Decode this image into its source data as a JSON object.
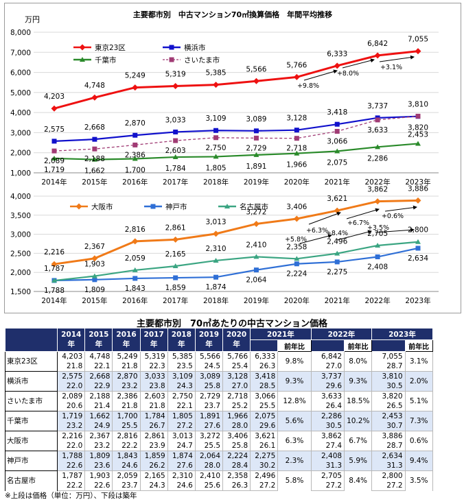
{
  "chart_data": [
    {
      "type": "line",
      "title": "主要都市別　中古マンション70㎡換算価格　年間平均推移",
      "ylabel": "万円",
      "ylim": [
        1000,
        8000
      ],
      "yticks": [
        "1,000",
        "2,000",
        "3,000",
        "4,000",
        "5,000",
        "6,000",
        "7,000",
        "8,000"
      ],
      "categories": [
        "2014年",
        "2015年",
        "2016年",
        "2017年",
        "2018年",
        "2019年",
        "2020年",
        "2021年",
        "2022年",
        "2023年"
      ],
      "legend": "top-left",
      "series": [
        {
          "name": "東京23区",
          "color": "#ee1111",
          "marker": "diamond",
          "dash": false,
          "values": [
            4203,
            4748,
            5249,
            5319,
            5385,
            5566,
            5766,
            6333,
            6842,
            7055
          ],
          "labels": [
            "4,203",
            "4,748",
            "5,249",
            "5,319",
            "5,385",
            "5,566",
            "5,766",
            "6,333",
            "6,842",
            "7,055"
          ]
        },
        {
          "name": "横浜市",
          "color": "#1111cc",
          "marker": "square",
          "dash": false,
          "values": [
            2575,
            2668,
            2870,
            3033,
            3109,
            3089,
            3128,
            3418,
            3737,
            3810
          ],
          "labels": [
            "2,575",
            "2,668",
            "2,870",
            "3,033",
            "3,109",
            "3,089",
            "3,128",
            "3,418",
            "3,737",
            "3,810"
          ]
        },
        {
          "name": "千葉市",
          "color": "#2a8a2a",
          "marker": "triangle",
          "dash": false,
          "values": [
            1719,
            1662,
            1700,
            1784,
            1805,
            1891,
            1966,
            2075,
            2286,
            2453
          ],
          "labels": [
            "1,719",
            "1,662",
            "1,700",
            "1,784",
            "1,805",
            "1,891",
            "1,966",
            "2,075",
            "2,286",
            "2,453"
          ]
        },
        {
          "name": "さいたま市",
          "color": "#a03b74",
          "marker": "square",
          "dash": true,
          "values": [
            2089,
            2188,
            2386,
            2603,
            2750,
            2729,
            2718,
            3066,
            3633,
            3820
          ],
          "labels": [
            "2,089",
            "2,188",
            "2,386",
            "2,603",
            "2,750",
            "2,729",
            "2,718",
            "3,066",
            "3,633",
            "3,820"
          ]
        }
      ],
      "annotations": [
        "+9.8%",
        "+8.0%",
        "+3.1%"
      ]
    },
    {
      "type": "line",
      "ylim": [
        1500,
        4000
      ],
      "yticks": [
        "1,500",
        "2,000",
        "2,500",
        "3,000",
        "3,500",
        "4,000"
      ],
      "categories": [
        "2014年",
        "2015年",
        "2016年",
        "2017年",
        "2018年",
        "2019年",
        "2020年",
        "2021年",
        "2022年",
        "2023年"
      ],
      "legend": "top-left",
      "series": [
        {
          "name": "大阪市",
          "color": "#f07a18",
          "marker": "diamond",
          "dash": false,
          "values": [
            2216,
            2367,
            2816,
            2861,
            3013,
            3272,
            3406,
            3621,
            3862,
            3886
          ],
          "labels": [
            "2,216",
            "2,367",
            "2,816",
            "2,861",
            "3,013",
            "3,272",
            "3,406",
            "3,621",
            "3,862",
            "3,886"
          ]
        },
        {
          "name": "神戸市",
          "color": "#2f6fd6",
          "marker": "square",
          "dash": false,
          "values": [
            1788,
            1809,
            1843,
            1859,
            1874,
            2064,
            2224,
            2275,
            2408,
            2634
          ],
          "labels": [
            "1,788",
            "1,809",
            "1,843",
            "1,859",
            "1,874",
            "2,064",
            "2,224",
            "2,275",
            "2,408",
            "2,634"
          ]
        },
        {
          "name": "名古屋市",
          "color": "#3ba582",
          "marker": "triangle",
          "dash": false,
          "values": [
            1787,
            1903,
            2059,
            2165,
            2310,
            2410,
            2358,
            2496,
            2705,
            2800
          ],
          "labels": [
            "1,787",
            "1,903",
            "2,059",
            "2,165",
            "2,310",
            "2,410",
            "2,358",
            "2,496",
            "2,705",
            "2,800"
          ]
        }
      ],
      "annotations": [
        "+6.3%",
        "+6.7%",
        "+0.6%",
        "+5.8%",
        "+8.4%",
        "+3.5%"
      ]
    }
  ],
  "table": {
    "title": "主要都市別　70㎡あたりの中古マンション価格",
    "years": [
      "2014年",
      "2015年",
      "2016年",
      "2017年",
      "2018年",
      "2019年",
      "2020年",
      "2021年",
      "2022年",
      "2023年"
    ],
    "yoy_header": "前年比",
    "rows": [
      {
        "city": "東京23区",
        "prices": [
          "4,203",
          "4,748",
          "5,249",
          "5,319",
          "5,385",
          "5,566",
          "5,766",
          "6,333",
          "6,842",
          "7,055"
        ],
        "ages": [
          "21.8",
          "22.1",
          "21.8",
          "22.3",
          "23.5",
          "24.5",
          "25.4",
          "26.3",
          "27.0",
          "28.7"
        ],
        "yoy": [
          "9.8%",
          "8.0%",
          "3.1%"
        ]
      },
      {
        "city": "横浜市",
        "prices": [
          "2,575",
          "2,668",
          "2,870",
          "3,033",
          "3,109",
          "3,089",
          "3,128",
          "3,418",
          "3,737",
          "3,810"
        ],
        "ages": [
          "22.0",
          "22.9",
          "23.2",
          "23.8",
          "24.3",
          "25.8",
          "27.0",
          "28.5",
          "29.6",
          "30.5"
        ],
        "yoy": [
          "9.3%",
          "9.3%",
          "2.0%"
        ]
      },
      {
        "city": "さいたま市",
        "prices": [
          "2,089",
          "2,188",
          "2,386",
          "2,603",
          "2,750",
          "2,729",
          "2,718",
          "3,066",
          "3,633",
          "3,820"
        ],
        "ages": [
          "20.6",
          "21.4",
          "21.8",
          "21.8",
          "22.1",
          "23.7",
          "25.2",
          "25.5",
          "26.4",
          "26.5"
        ],
        "yoy": [
          "12.8%",
          "18.5%",
          "5.1%"
        ]
      },
      {
        "city": "千葉市",
        "prices": [
          "1,719",
          "1,662",
          "1,700",
          "1,784",
          "1,805",
          "1,891",
          "1,966",
          "2,075",
          "2,286",
          "2,453"
        ],
        "ages": [
          "23.2",
          "24.9",
          "25.5",
          "26.7",
          "27.2",
          "27.6",
          "28.0",
          "29.6",
          "30.5",
          "30.7"
        ],
        "yoy": [
          "5.6%",
          "10.2%",
          "7.3%"
        ]
      },
      {
        "city": "大阪市",
        "prices": [
          "2,216",
          "2,367",
          "2,816",
          "2,861",
          "3,013",
          "3,272",
          "3,406",
          "3,621",
          "3,862",
          "3,886"
        ],
        "ages": [
          "22.0",
          "23.2",
          "22.2",
          "23.9",
          "24.7",
          "25.5",
          "25.8",
          "26.1",
          "27.4",
          "28.7"
        ],
        "yoy": [
          "6.3%",
          "6.7%",
          "0.6%"
        ]
      },
      {
        "city": "神戸市",
        "prices": [
          "1,788",
          "1,809",
          "1,843",
          "1,859",
          "1,874",
          "2,064",
          "2,224",
          "2,275",
          "2,408",
          "2,634"
        ],
        "ages": [
          "22.6",
          "23.6",
          "24.6",
          "26.2",
          "27.6",
          "28.0",
          "28.4",
          "30.2",
          "31.3",
          "31.3"
        ],
        "yoy": [
          "2.3%",
          "5.9%",
          "9.4%"
        ]
      },
      {
        "city": "名古屋市",
        "prices": [
          "1,787",
          "1,903",
          "2,059",
          "2,165",
          "2,310",
          "2,410",
          "2,358",
          "2,496",
          "2,705",
          "2,800"
        ],
        "ages": [
          "22.2",
          "22.6",
          "23.7",
          "24.3",
          "24.6",
          "25.6",
          "26.3",
          "27.2",
          "27.2",
          "27.2"
        ],
        "yoy": [
          "5.8%",
          "8.4%",
          "3.5%"
        ]
      }
    ],
    "footnote": "※上段は価格（単位：万円）、下段は築年"
  }
}
